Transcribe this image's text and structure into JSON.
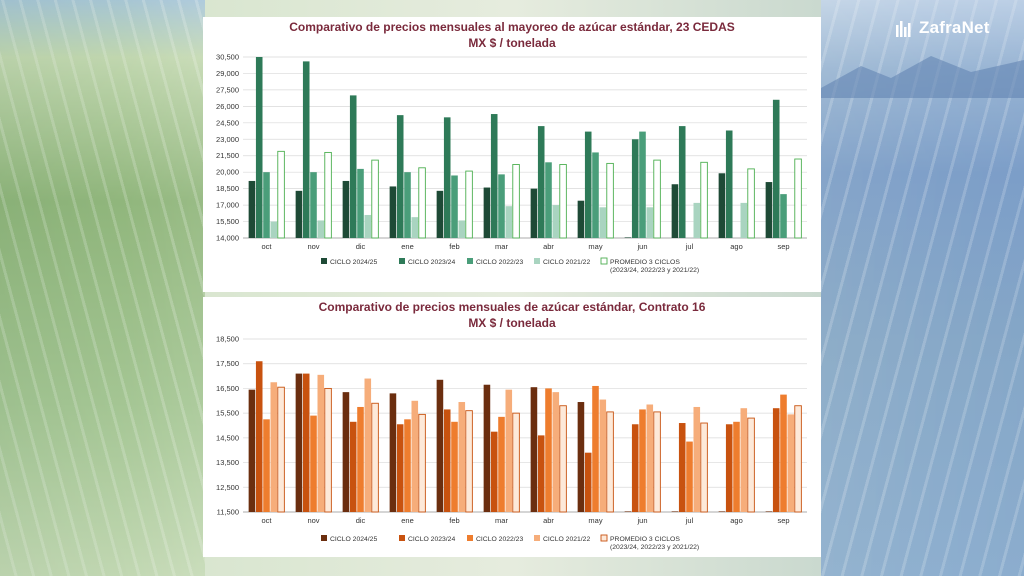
{
  "brand": {
    "name": "ZafraNet"
  },
  "chart_data": [
    {
      "type": "bar",
      "title": "Comparativo de precios mensuales al mayoreo de azúcar estándar, 23 CEDAS",
      "subtitle": "MX $ / tonelada",
      "categories": [
        "oct",
        "nov",
        "dic",
        "ene",
        "feb",
        "mar",
        "abr",
        "may",
        "jun",
        "jul",
        "ago",
        "sep"
      ],
      "ylim": [
        14000,
        30500
      ],
      "yticks": [
        "14,000",
        "15,500",
        "17,000",
        "18,500",
        "20,000",
        "21,500",
        "23,000",
        "24,500",
        "26,000",
        "27,500",
        "29,000",
        "30,500"
      ],
      "ytick_values": [
        14000,
        15500,
        17000,
        18500,
        20000,
        21500,
        23000,
        24500,
        26000,
        27500,
        29000,
        30500
      ],
      "legend": "bottom",
      "series": [
        {
          "name": "CICLO 2024/25",
          "color": "#1e4a36",
          "values": [
            19200,
            18300,
            19200,
            18700,
            18300,
            18600,
            18500,
            17400,
            14000,
            18900,
            19900,
            19100
          ]
        },
        {
          "name": "CICLO 2023/24",
          "color": "#2e7a58",
          "values": [
            30500,
            30100,
            27000,
            25200,
            25000,
            25300,
            24200,
            23700,
            23000,
            24200,
            23800,
            26600
          ]
        },
        {
          "name": "CICLO 2022/23",
          "color": "#4a9e7a",
          "values": [
            20000,
            20000,
            20300,
            20000,
            19700,
            19800,
            20900,
            21800,
            23700,
            null,
            null,
            18000
          ]
        },
        {
          "name": "CICLO 2021/22",
          "color": "#a9d4c0",
          "values": [
            15500,
            15600,
            16100,
            15900,
            15600,
            16900,
            17000,
            16800,
            16800,
            17200,
            17200,
            null
          ]
        },
        {
          "name": "PROMEDIO 3 CICLOS",
          "name2": "(2023/24, 2022/23 y 2021/22)",
          "color": "#ffffff",
          "stroke": "#4caf50",
          "values": [
            21900,
            21800,
            21100,
            20400,
            20100,
            20700,
            20700,
            20800,
            21100,
            20900,
            20300,
            21200
          ]
        }
      ]
    },
    {
      "type": "bar",
      "title": "Comparativo de precios mensuales de azúcar estándar, Contrato 16",
      "subtitle": "MX $ / tonelada",
      "categories": [
        "oct",
        "nov",
        "dic",
        "ene",
        "feb",
        "mar",
        "abr",
        "may",
        "jun",
        "jul",
        "ago",
        "sep"
      ],
      "ylim": [
        11500,
        18500
      ],
      "yticks": [
        "11,500",
        "12,500",
        "13,500",
        "14,500",
        "15,500",
        "16,500",
        "17,500",
        "18,500"
      ],
      "ytick_values": [
        11500,
        12500,
        13500,
        14500,
        15500,
        16500,
        17500,
        18500
      ],
      "legend": "bottom",
      "series": [
        {
          "name": "CICLO 2024/25",
          "color": "#6b2e0f",
          "values": [
            16450,
            17100,
            16350,
            16300,
            16850,
            16650,
            16550,
            15950,
            11500,
            11500,
            11500,
            11500
          ]
        },
        {
          "name": "CICLO 2023/24",
          "color": "#c8520f",
          "values": [
            17600,
            17100,
            15150,
            15050,
            15650,
            14750,
            14600,
            13900,
            15050,
            15100,
            15050,
            15700
          ]
        },
        {
          "name": "CICLO 2022/23",
          "color": "#ee7d2e",
          "values": [
            15250,
            15400,
            15750,
            15250,
            15150,
            15350,
            16500,
            16600,
            15650,
            14350,
            15150,
            16250
          ]
        },
        {
          "name": "CICLO 2021/22",
          "color": "#f6ad7a",
          "values": [
            16750,
            17050,
            16900,
            16000,
            15950,
            16450,
            16350,
            16050,
            15850,
            15750,
            15700,
            15450
          ]
        },
        {
          "name": "PROMEDIO 3 CICLOS",
          "name2": "(2023/24, 2022/23 y 2021/22)",
          "color": "#fde9d9",
          "stroke": "#c8520f",
          "values": [
            16550,
            16500,
            15900,
            15450,
            15600,
            15500,
            15800,
            15550,
            15550,
            15100,
            15300,
            15800
          ]
        }
      ]
    }
  ]
}
